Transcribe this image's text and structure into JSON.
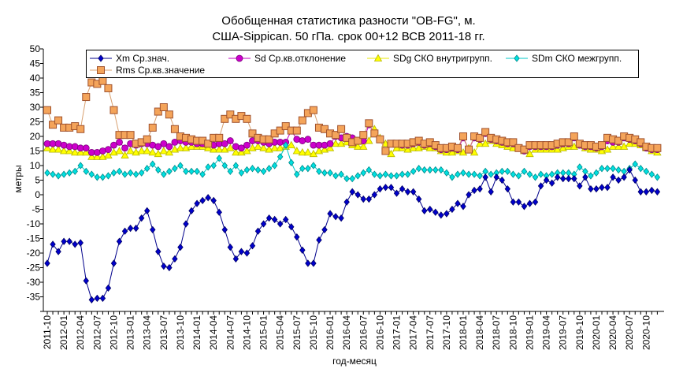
{
  "chart_data": {
    "type": "line",
    "title": "Обобщенная статистика разности \"OB-FG\", м.",
    "subtitle": "США-Sippican. 50 гПа. срок 00+12 ВСВ 2011-18 гг.",
    "xlabel": "год-месяц",
    "ylabel": "метры",
    "ylim": [
      -40,
      50
    ],
    "y_ticks": [
      -35,
      -30,
      -25,
      -20,
      -15,
      -10,
      -5,
      0,
      5,
      10,
      15,
      20,
      25,
      30,
      35,
      40,
      45,
      50
    ],
    "grid": false,
    "legend": "top",
    "x": [
      "2011-10",
      "2011-11",
      "2011-12",
      "2012-01",
      "2012-02",
      "2012-03",
      "2012-04",
      "2012-05",
      "2012-06",
      "2012-07",
      "2012-08",
      "2012-09",
      "2012-10",
      "2012-11",
      "2012-12",
      "2013-01",
      "2013-02",
      "2013-03",
      "2013-04",
      "2013-05",
      "2013-06",
      "2013-07",
      "2013-08",
      "2013-09",
      "2013-10",
      "2013-11",
      "2013-12",
      "2014-01",
      "2014-02",
      "2014-03",
      "2014-04",
      "2014-05",
      "2014-06",
      "2014-07",
      "2014-08",
      "2014-09",
      "2014-10",
      "2014-11",
      "2014-12",
      "2015-01",
      "2015-02",
      "2015-03",
      "2015-04",
      "2015-05",
      "2015-06",
      "2015-07",
      "2015-08",
      "2015-09",
      "2015-10",
      "2015-11",
      "2015-12",
      "2016-01",
      "2016-02",
      "2016-03",
      "2016-04",
      "2016-05",
      "2016-06",
      "2016-07",
      "2016-08",
      "2016-09",
      "2016-10",
      "2016-11",
      "2016-12",
      "2017-01",
      "2017-02",
      "2017-03",
      "2017-04",
      "2017-05",
      "2017-06",
      "2017-07",
      "2017-08",
      "2017-09",
      "2017-10",
      "2017-11",
      "2017-12",
      "2018-01",
      "2018-02",
      "2018-03",
      "2018-04",
      "2018-05",
      "2018-06",
      "2018-07",
      "2018-08",
      "2018-09",
      "2018-10",
      "2018-11",
      "2018-12",
      "2019-01",
      "2019-02",
      "2019-03",
      "2019-04",
      "2019-05",
      "2019-06",
      "2019-07",
      "2019-08",
      "2019-09",
      "2019-10",
      "2019-11",
      "2019-12",
      "2020-01",
      "2020-02",
      "2020-03",
      "2020-04",
      "2020-05",
      "2020-06",
      "2020-07",
      "2020-08",
      "2020-09",
      "2020-10",
      "2020-11",
      "2020-12"
    ],
    "series": [
      {
        "id": "sdg",
        "name": "SDg СКО внутригрупп.",
        "color": "#e8e800",
        "marker": "triangle",
        "marker_fill": "#ffff00",
        "marker_edge": "#b8b800",
        "values": [
          16,
          15.5,
          15.5,
          15,
          15,
          14.5,
          14.5,
          14.5,
          13,
          13,
          13,
          13.5,
          14.5,
          15,
          13.5,
          15,
          14.5,
          15,
          15,
          14.5,
          14,
          15,
          14.5,
          15.5,
          16,
          16,
          16.5,
          16.5,
          16.5,
          16,
          15.5,
          15.5,
          15.5,
          16,
          14.5,
          14.5,
          15,
          16,
          16.5,
          16,
          15.5,
          16,
          16,
          16.5,
          17,
          15,
          14.5,
          14.5,
          14,
          15,
          15.5,
          16,
          17.5,
          17.5,
          18,
          17,
          16.5,
          16.5,
          18.5,
          22.5,
          19.5,
          17.5,
          14,
          16,
          16,
          15.5,
          16,
          16,
          16.5,
          16,
          16,
          15,
          14.5,
          14.5,
          15,
          14.5,
          16,
          14.5,
          17.5,
          17.5,
          18.5,
          17.5,
          17,
          16.5,
          16,
          16,
          15,
          14,
          15.5,
          15.5,
          15.5,
          15.5,
          15.5,
          16,
          16.5,
          16.5,
          17,
          16,
          15.5,
          15.5,
          15,
          15.5,
          16.5,
          16.5,
          16.5,
          17.5,
          17.5,
          17,
          16,
          15,
          14.5
        ]
      },
      {
        "id": "sd",
        "name": "Sd Ср.кв.отклонение",
        "color": "#c000c0",
        "marker": "circle",
        "marker_fill": "#cc00cc",
        "marker_edge": "#7a007a",
        "values": [
          17.5,
          17.5,
          17.5,
          17,
          16.5,
          16.5,
          16,
          16,
          14.5,
          14.5,
          15,
          15.5,
          17,
          18,
          16,
          17.5,
          17,
          17.5,
          17.5,
          17,
          16.5,
          17.5,
          16.5,
          18,
          18.5,
          18,
          18,
          17.5,
          17.5,
          17.5,
          17,
          17.5,
          17.5,
          18.5,
          16.5,
          16,
          17,
          18.5,
          18.5,
          18,
          17.5,
          18,
          18,
          18,
          22,
          19,
          18.5,
          19,
          17,
          17,
          17,
          17.5,
          20,
          19.5,
          20,
          19.5,
          18.5,
          18.5,
          24,
          21,
          19,
          15,
          17.5,
          17.5,
          17,
          17,
          17.5,
          18,
          17,
          17.5,
          16.5,
          15.5,
          15.5,
          16,
          15.5,
          19.5,
          15.5,
          19.5,
          19,
          21,
          19,
          18.5,
          18,
          17.5,
          17.5,
          16,
          15,
          16.5,
          16.5,
          16.5,
          16.5,
          16.5,
          17,
          17.5,
          17.5,
          19.5,
          17,
          16.5,
          16.5,
          16,
          16.5,
          18.5,
          18,
          18,
          19.5,
          19,
          18.5,
          17.5,
          16,
          15.5,
          15.5
        ]
      },
      {
        "id": "rms",
        "name": "Rms Ср.кв.значение",
        "color": "#d8a070",
        "marker": "square",
        "marker_fill": "#f4a45a",
        "marker_edge": "#a0522d",
        "values": [
          29,
          24,
          25.5,
          23,
          23,
          23.5,
          22.5,
          33.5,
          38.5,
          38,
          39,
          36.5,
          29,
          20.5,
          20.5,
          20.5,
          17.5,
          18,
          19,
          23,
          28.5,
          30,
          27.5,
          22.5,
          20,
          19.5,
          19,
          18.5,
          18.5,
          17.5,
          19.5,
          19.5,
          26,
          27.5,
          26,
          27,
          26,
          21,
          19.5,
          19,
          19,
          21,
          22,
          23.5,
          22,
          22,
          25.5,
          28,
          29,
          23,
          22.5,
          21,
          20.5,
          22.5,
          19.5,
          18,
          18.5,
          20.5,
          24.5,
          21,
          19,
          15,
          17.5,
          17.5,
          17.5,
          17.5,
          18,
          18.5,
          17.5,
          18,
          17,
          16,
          16,
          16.5,
          16,
          20,
          15.5,
          20,
          19.5,
          21.5,
          19.5,
          19,
          18.5,
          18,
          18,
          16,
          15.5,
          17,
          17,
          17,
          17,
          17,
          17.5,
          18,
          18,
          20,
          17.5,
          17,
          17,
          16.5,
          17,
          19.5,
          19,
          18.5,
          20,
          19.5,
          19,
          18,
          16.5,
          16,
          16
        ]
      },
      {
        "id": "sdm",
        "name": "SDm СКО межгрупп.",
        "color": "#00c8c8",
        "marker": "diamond",
        "marker_fill": "#00e0e0",
        "marker_edge": "#008b8b",
        "values": [
          7.5,
          7,
          6.5,
          7,
          7.5,
          8,
          10,
          8,
          7,
          6,
          6,
          6.5,
          7.5,
          8,
          7,
          7.5,
          7,
          7.5,
          9,
          10.5,
          8.5,
          7,
          8,
          9,
          10,
          8,
          8,
          8,
          7,
          9.5,
          10,
          12.5,
          10,
          8,
          10,
          7.5,
          8.5,
          9,
          8.5,
          8,
          9,
          10,
          13,
          17,
          11,
          7,
          9,
          9,
          10,
          8,
          7.5,
          7.5,
          6.5,
          7,
          5.5,
          5.5,
          6.5,
          7.5,
          8.5,
          7,
          6.5,
          7,
          6.5,
          6.5,
          7,
          7,
          8,
          9,
          8.5,
          8.5,
          8.5,
          8.5,
          7.5,
          6,
          7,
          7.5,
          7,
          7,
          6.5,
          8,
          7,
          7.5,
          8,
          8,
          7,
          6.5,
          8,
          7,
          6,
          7,
          6.5,
          7,
          7.5,
          7.5,
          7.5,
          7,
          9.5,
          8,
          6.5,
          7.5,
          9,
          9,
          9,
          8.5,
          8,
          9,
          10.5,
          9,
          8,
          7,
          6
        ]
      },
      {
        "id": "xm",
        "name": "Xm Ср.знач.",
        "color": "#00008b",
        "marker": "diamond",
        "marker_fill": "#0000cc",
        "marker_edge": "#000066",
        "values": [
          -23.5,
          -17,
          -19.5,
          -16,
          -16,
          -17,
          -16.5,
          -29.5,
          -36,
          -35.5,
          -35.5,
          -32,
          -23.5,
          -16,
          -12.5,
          -11.5,
          -11.5,
          -8,
          -5.5,
          -12,
          -19.5,
          -24.5,
          -25,
          -22,
          -18,
          -10,
          -5.5,
          -3,
          -2,
          -1,
          -2,
          -6,
          -12,
          -18,
          -22,
          -19.5,
          -20,
          -17.5,
          -12.5,
          -10,
          -8,
          -8.5,
          -10,
          -8.5,
          -11,
          -14.5,
          -19,
          -23.5,
          -23.5,
          -15.5,
          -12,
          -6.5,
          -7.5,
          -8,
          -2.5,
          1,
          0,
          -1.5,
          -1.5,
          0,
          2,
          2.5,
          2.5,
          0.5,
          2,
          1,
          1,
          -1.5,
          -5.5,
          -5,
          -6,
          -7,
          -6.5,
          -5,
          -3,
          -4,
          0,
          1.5,
          2,
          6,
          1,
          6,
          5,
          2,
          -2.5,
          -2.5,
          -4,
          -3,
          -2.5,
          3,
          5,
          4,
          6,
          5.5,
          5.5,
          5.5,
          3,
          6,
          2,
          2,
          2.5,
          2.5,
          6,
          5,
          6,
          8.5,
          5,
          1,
          1,
          1.5,
          1
        ]
      }
    ],
    "legend_order": [
      "xm",
      "sd",
      "sdg",
      "sdm",
      "rms"
    ]
  }
}
